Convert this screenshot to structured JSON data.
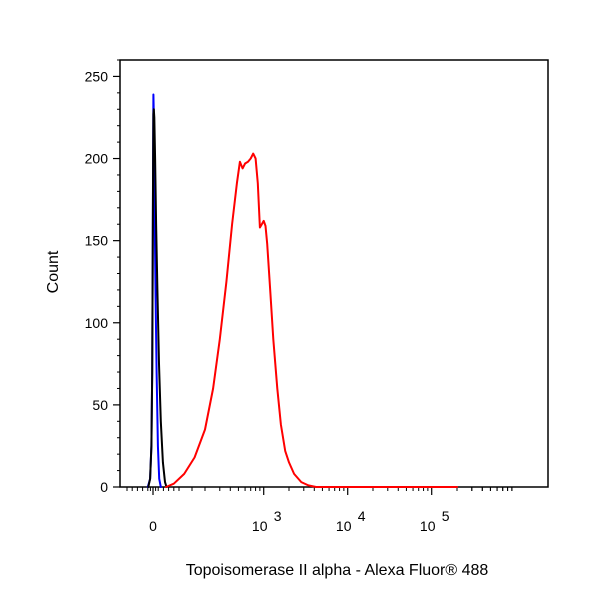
{
  "chart_data": {
    "type": "line",
    "title": "",
    "xlabel": "Topoisomerase II alpha - Alexa Fluor® 488",
    "ylabel": "Count",
    "x_scale": "biexponential",
    "ylim": [
      0,
      260
    ],
    "grid": false,
    "y_ticks": [
      0,
      50,
      100,
      150,
      200,
      250
    ],
    "x_ticks": [
      {
        "value": 0,
        "base": "0",
        "exp": ""
      },
      {
        "value": 1000,
        "base": "10",
        "exp": "3"
      },
      {
        "value": 10000,
        "base": "10",
        "exp": "4"
      },
      {
        "value": 100000,
        "base": "10",
        "exp": "5"
      }
    ],
    "series": [
      {
        "color": "#0000ff",
        "points": [
          [
            -20,
            0
          ],
          [
            -11,
            5
          ],
          [
            -6,
            25
          ],
          [
            -3,
            70
          ],
          [
            -1,
            140
          ],
          [
            0.5,
            200
          ],
          [
            1.5,
            239
          ],
          [
            2.5,
            230
          ],
          [
            4,
            205
          ],
          [
            6,
            170
          ],
          [
            10,
            115
          ],
          [
            14,
            70
          ],
          [
            19,
            25
          ],
          [
            24,
            5
          ],
          [
            30,
            0
          ]
        ]
      },
      {
        "color": "#000000",
        "points": [
          [
            -18,
            0
          ],
          [
            -11,
            5
          ],
          [
            -6,
            25
          ],
          [
            -3,
            70
          ],
          [
            -1,
            140
          ],
          [
            0.5,
            195
          ],
          [
            1.5,
            227
          ],
          [
            3,
            230
          ],
          [
            5,
            225
          ],
          [
            8,
            200
          ],
          [
            12,
            160
          ],
          [
            17,
            120
          ],
          [
            23,
            75
          ],
          [
            30,
            40
          ],
          [
            38,
            15
          ],
          [
            46,
            3
          ],
          [
            52,
            0
          ]
        ]
      },
      {
        "color": "#ff0000",
        "points": [
          [
            50,
            0
          ],
          [
            80,
            2
          ],
          [
            120,
            8
          ],
          [
            160,
            18
          ],
          [
            200,
            35
          ],
          [
            250,
            60
          ],
          [
            300,
            90
          ],
          [
            360,
            125
          ],
          [
            420,
            160
          ],
          [
            480,
            185
          ],
          [
            520,
            198
          ],
          [
            560,
            194
          ],
          [
            600,
            197
          ],
          [
            650,
            198
          ],
          [
            700,
            200
          ],
          [
            750,
            203
          ],
          [
            800,
            200
          ],
          [
            850,
            185
          ],
          [
            900,
            158
          ],
          [
            950,
            160
          ],
          [
            1000,
            162
          ],
          [
            1050,
            159
          ],
          [
            1100,
            148
          ],
          [
            1200,
            118
          ],
          [
            1300,
            90
          ],
          [
            1450,
            60
          ],
          [
            1600,
            38
          ],
          [
            1800,
            22
          ],
          [
            2000,
            15
          ],
          [
            2300,
            8
          ],
          [
            2800,
            3
          ],
          [
            3400,
            1
          ],
          [
            4200,
            0
          ],
          [
            200000,
            0
          ]
        ]
      }
    ]
  }
}
